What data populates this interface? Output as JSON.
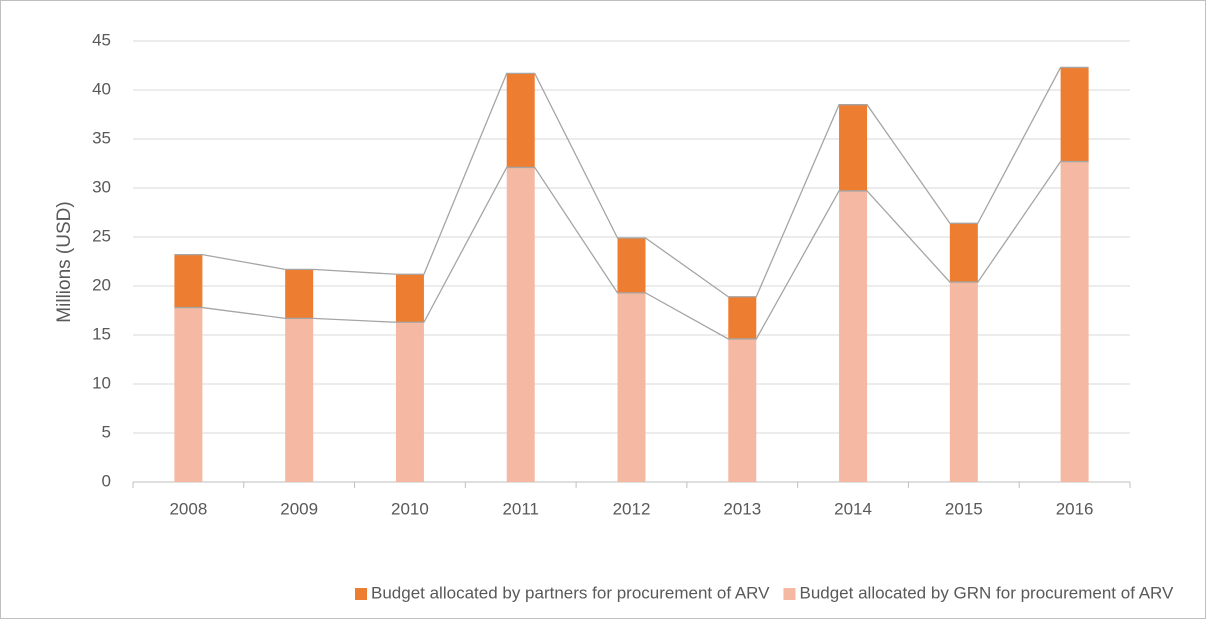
{
  "chart_data": {
    "type": "bar",
    "stacked": true,
    "ylabel": "Millions (USD)",
    "categories": [
      "2008",
      "2009",
      "2010",
      "2011",
      "2012",
      "2013",
      "2014",
      "2015",
      "2016"
    ],
    "series": [
      {
        "name": "Budget allocated by partners for procurement of ARV",
        "color": "#ed7d31",
        "values": [
          5.4,
          5.0,
          4.9,
          9.6,
          5.6,
          4.3,
          8.8,
          6.0,
          9.6
        ]
      },
      {
        "name": "Budget allocated by GRN for procurement of ARV",
        "color": "#f5b8a2",
        "values": [
          17.8,
          16.7,
          16.3,
          32.1,
          19.3,
          14.6,
          29.7,
          20.4,
          32.7
        ]
      }
    ],
    "stack_order": [
      1,
      0
    ],
    "ylim": [
      0,
      45
    ],
    "yticks": [
      0,
      5,
      10,
      15,
      20,
      25,
      30,
      35,
      40,
      45
    ],
    "grid": true,
    "series_lines": true,
    "legend": "bottom"
  }
}
